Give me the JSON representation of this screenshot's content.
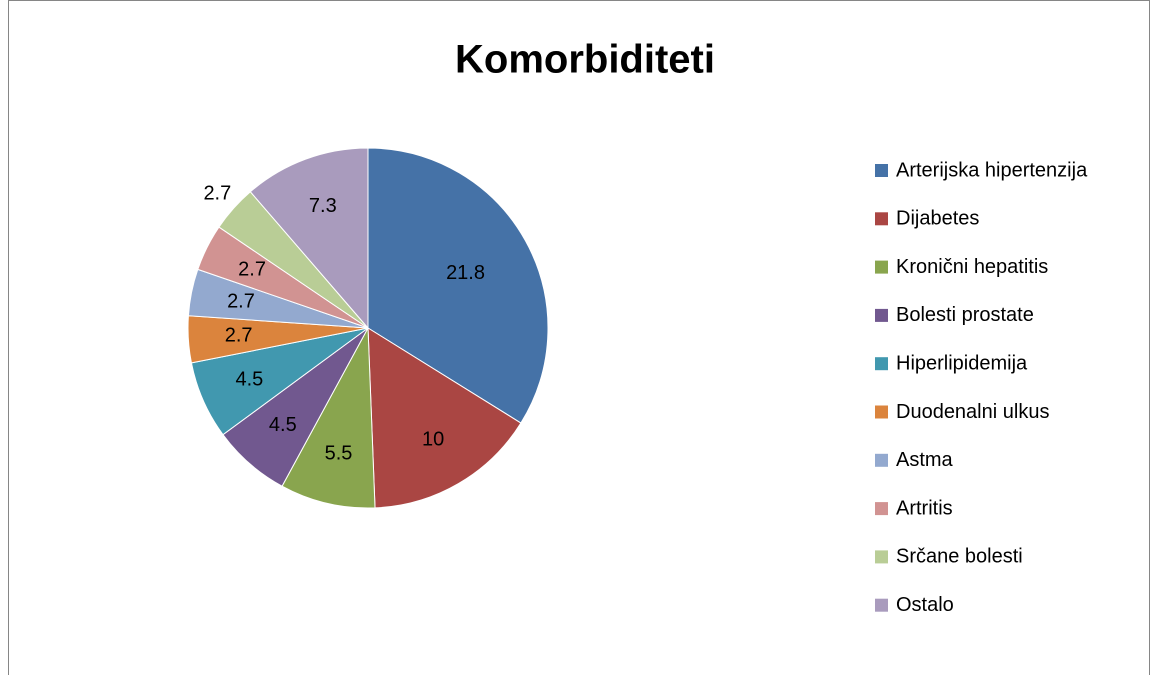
{
  "chart_data": {
    "type": "pie",
    "title": "Komorbiditeti",
    "categories": [
      "Arterijska hipertenzija",
      "Dijabetes",
      "Kronični hepatitis",
      "Bolesti prostate",
      "Hiperlipidemija",
      "Duodenalni ulkus",
      "Astma",
      "Artritis",
      "Srčane bolesti",
      "Ostalo"
    ],
    "values": [
      21.8,
      10,
      5.5,
      4.5,
      4.5,
      2.7,
      2.7,
      2.7,
      2.7,
      7.3
    ],
    "colors": [
      "#4572a7",
      "#aa4643",
      "#89a54e",
      "#71588f",
      "#4198af",
      "#db843d",
      "#93a9cf",
      "#d19392",
      "#b9cd96",
      "#a99bbd"
    ],
    "legend": "right"
  }
}
